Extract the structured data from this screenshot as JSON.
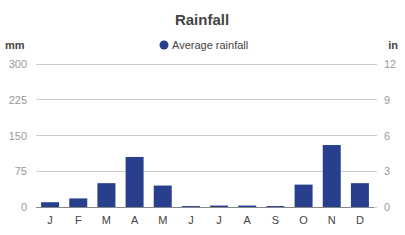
{
  "chart_data": {
    "type": "bar",
    "title": "Rainfall",
    "ylabel": "mm",
    "y2label": "in",
    "categories": [
      "J",
      "F",
      "M",
      "A",
      "M",
      "J",
      "J",
      "A",
      "S",
      "O",
      "N",
      "D"
    ],
    "series": [
      {
        "name": "Average rainfall",
        "color": "#283f8e",
        "values": [
          10,
          18,
          50,
          105,
          45,
          2,
          3,
          3,
          2,
          47,
          130,
          50
        ]
      }
    ],
    "ylim": [
      0,
      300
    ],
    "yticks": [
      0,
      75,
      150,
      225,
      300
    ],
    "y2lim": [
      0,
      12
    ],
    "y2ticks": [
      0,
      3,
      6,
      9,
      12
    ],
    "grid": true,
    "legend": "top"
  }
}
